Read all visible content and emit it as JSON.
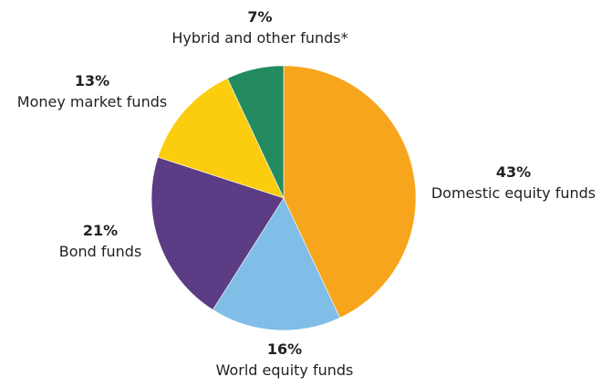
{
  "chart_data": {
    "type": "pie",
    "title": "",
    "start_angle_deg": 0,
    "direction": "clockwise",
    "slices": [
      {
        "label": "Domestic equity funds",
        "value": 43,
        "value_label": "43%",
        "color": "#f7a51c"
      },
      {
        "label": "World equity funds",
        "value": 16,
        "value_label": "16%",
        "color": "#80bde7"
      },
      {
        "label": "Bond funds",
        "value": 21,
        "value_label": "21%",
        "color": "#5c3c84"
      },
      {
        "label": "Money market funds",
        "value": 13,
        "value_label": "13%",
        "color": "#fccd0e"
      },
      {
        "label": "Hybrid and other funds*",
        "value": 7,
        "value_label": "7%",
        "color": "#238b5f"
      }
    ]
  }
}
